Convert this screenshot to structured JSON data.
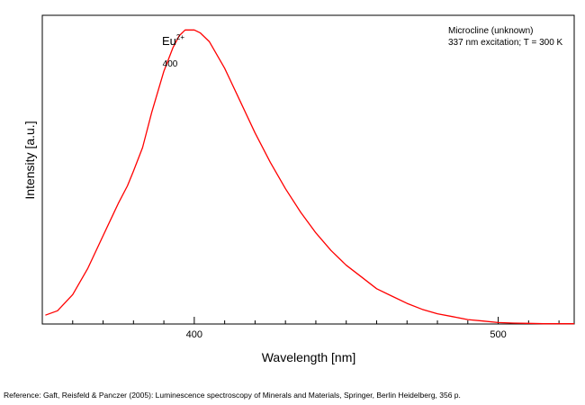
{
  "chart_data": {
    "type": "line",
    "xlabel": "Wavelength [nm]",
    "ylabel": "Intensity [a.u.]",
    "xlim": [
      350,
      525
    ],
    "ylim": [
      0,
      1.05
    ],
    "x_ticks": [
      400,
      500
    ],
    "x_minor_ticks": [
      350,
      360,
      370,
      380,
      390,
      410,
      420,
      430,
      440,
      450,
      460,
      470,
      480,
      490,
      510,
      520
    ],
    "series": [
      {
        "color": "#ff0000",
        "x": [
          351,
          355,
          360,
          365,
          370,
          375,
          378,
          380,
          383,
          386,
          390,
          393,
          395,
          397,
          399,
          400,
          402,
          405,
          410,
          415,
          420,
          425,
          430,
          435,
          440,
          445,
          450,
          455,
          460,
          465,
          470,
          475,
          480,
          485,
          490,
          495,
          500,
          505,
          510,
          515,
          520,
          525
        ],
        "y": [
          0.03,
          0.045,
          0.1,
          0.19,
          0.3,
          0.41,
          0.47,
          0.52,
          0.6,
          0.72,
          0.86,
          0.94,
          0.98,
          1.0,
          1.0,
          1.0,
          0.99,
          0.96,
          0.87,
          0.76,
          0.65,
          0.55,
          0.46,
          0.38,
          0.31,
          0.25,
          0.2,
          0.16,
          0.12,
          0.095,
          0.07,
          0.05,
          0.035,
          0.025,
          0.015,
          0.01,
          0.005,
          0.003,
          0.002,
          0.001,
          0.001,
          0.001
        ]
      }
    ],
    "annotations": {
      "ion": "Eu",
      "ion_charge": "2+",
      "peak": "400",
      "sample": "Microcline (unknown)",
      "conditions": "337 nm excitation; T = 300 K"
    }
  },
  "reference": "Reference: Gaft, Reisfeld & Panczer (2005): Luminescence spectroscopy of Minerals and Materials, Springer, Berlin Heidelberg, 356 p."
}
